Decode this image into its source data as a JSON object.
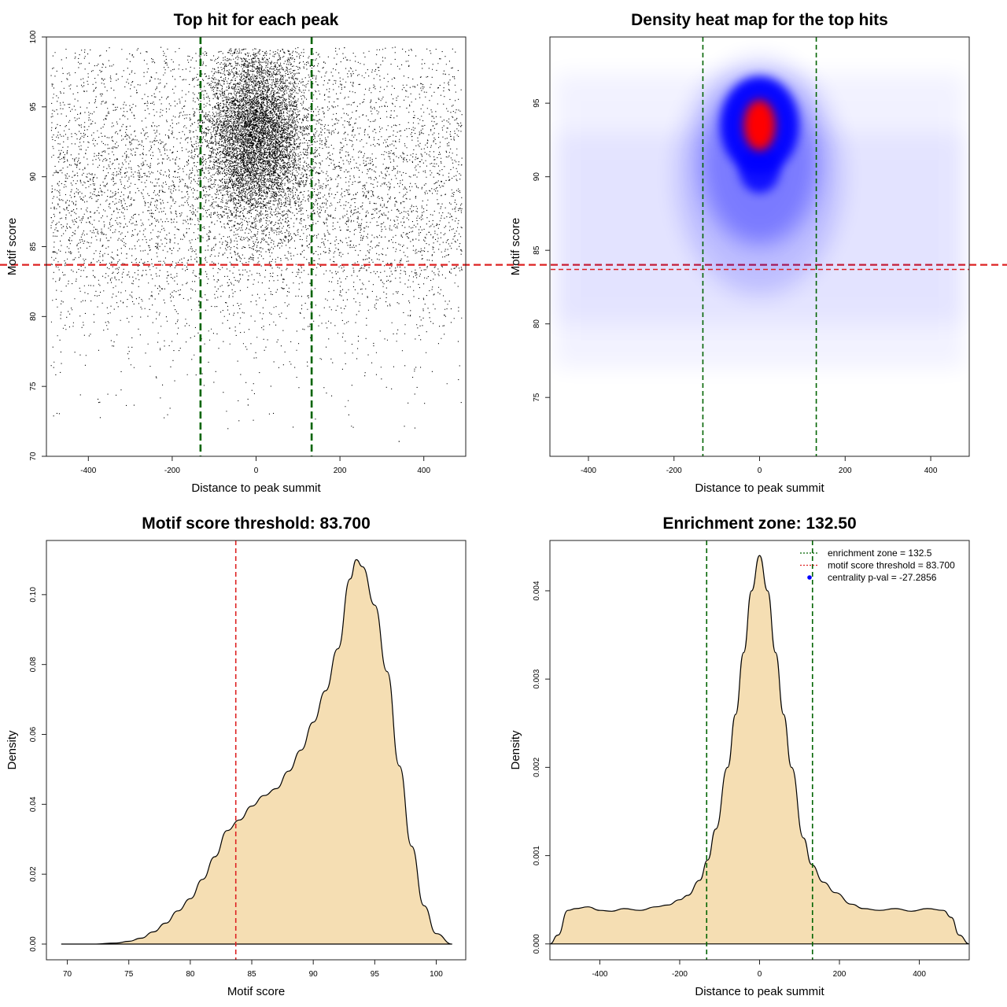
{
  "chart_data": [
    {
      "id": "p1",
      "type": "scatter",
      "title": "Top hit for each peak",
      "xlabel": "Distance to peak summit",
      "ylabel": "Motif score",
      "xlim": [
        -500,
        500
      ],
      "ylim": [
        70,
        100
      ],
      "xticks": [
        -400,
        -200,
        0,
        200,
        400
      ],
      "yticks": [
        70,
        75,
        80,
        85,
        90,
        95,
        100
      ],
      "hlines": [
        {
          "value": 83.7,
          "color": "#dd2222",
          "style": "dashed"
        }
      ],
      "vlines": [
        {
          "value": -132.5,
          "color": "#006400",
          "style": "dashed"
        },
        {
          "value": 132.5,
          "color": "#006400",
          "style": "dashed"
        }
      ],
      "distribution": {
        "background": {
          "n": 6200,
          "x_range": [
            -490,
            490
          ],
          "score_mean": 89,
          "score_sd": 5.5
        },
        "central_cluster": {
          "n": 6800,
          "x_mean": 0,
          "x_sd": 60,
          "score_mean": 93,
          "score_sd": 3
        }
      },
      "notable_points": [
        {
          "x": 340,
          "y": 71.1
        },
        {
          "x": -20,
          "y": 73.7
        },
        {
          "x": 220,
          "y": 73
        }
      ]
    },
    {
      "id": "p2",
      "type": "heatmap",
      "title": "Density heat map for the top hits",
      "xlabel": "Distance to peak summit",
      "ylabel": "Motif score",
      "xlim": [
        -490,
        490
      ],
      "ylim": [
        71,
        99.5
      ],
      "xticks": [
        -400,
        -200,
        0,
        200,
        400
      ],
      "yticks": [
        75,
        80,
        85,
        90,
        95
      ],
      "density_peak": {
        "x": 0,
        "y": 93.5
      },
      "color_scale": [
        "#ffffff",
        "#0000ff",
        "#ff0000"
      ],
      "hlines": [
        {
          "value": 83.7,
          "color": "#dd2222",
          "style": "dashed"
        }
      ],
      "vlines": [
        {
          "value": -132.5,
          "color": "#006400",
          "style": "dashed"
        },
        {
          "value": 132.5,
          "color": "#006400",
          "style": "dashed"
        }
      ]
    },
    {
      "id": "p3",
      "type": "area",
      "title": "Motif score threshold: 83.700",
      "xlabel": "Motif score",
      "ylabel": "Density",
      "xlim": [
        68.3,
        102.4
      ],
      "ylim": [
        -0.0045,
        0.1155
      ],
      "xticks": [
        70,
        75,
        80,
        85,
        90,
        95,
        100
      ],
      "yticks": [
        "0.00",
        "0.02",
        "0.04",
        "0.06",
        "0.08",
        "0.10"
      ],
      "fill": "#f5deb3",
      "x": [
        69.5,
        72,
        74,
        75,
        76,
        77,
        78,
        79,
        80,
        81,
        82,
        83,
        84,
        85,
        86,
        87,
        88,
        89,
        90,
        91,
        92,
        93,
        93.5,
        94,
        95,
        96,
        97,
        98,
        99,
        100,
        101.3
      ],
      "y": [
        0,
        0,
        0.0003,
        0.0008,
        0.0017,
        0.0035,
        0.006,
        0.0095,
        0.013,
        0.0185,
        0.025,
        0.0325,
        0.0355,
        0.0395,
        0.0425,
        0.0445,
        0.0495,
        0.0555,
        0.0635,
        0.0725,
        0.0845,
        0.1045,
        0.11,
        0.108,
        0.097,
        0.078,
        0.051,
        0.028,
        0.011,
        0.003,
        0
      ],
      "vlines": [
        {
          "value": 83.7,
          "color": "#dd2222",
          "style": "dashed"
        }
      ]
    },
    {
      "id": "p4",
      "type": "area",
      "title": "Enrichment zone: 132.50",
      "xlabel": "Distance to peak summit",
      "ylabel": "Density",
      "xlim": [
        -525,
        525
      ],
      "ylim": [
        -0.00018,
        0.00457
      ],
      "xticks": [
        -400,
        -200,
        0,
        200,
        400
      ],
      "yticks": [
        "0.000",
        "0.001",
        "0.002",
        "0.003",
        "0.004"
      ],
      "fill": "#f5deb3",
      "x": [
        -525,
        -505,
        -480,
        -460,
        -430,
        -400,
        -370,
        -340,
        -300,
        -260,
        -230,
        -200,
        -180,
        -150,
        -130,
        -110,
        -80,
        -60,
        -40,
        -20,
        0,
        20,
        40,
        60,
        80,
        110,
        130,
        160,
        190,
        230,
        260,
        300,
        340,
        380,
        420,
        460,
        480,
        500,
        525
      ],
      "y": [
        0,
        0.0001,
        0.00038,
        0.0004,
        0.00042,
        0.00038,
        0.00037,
        0.0004,
        0.00038,
        0.00042,
        0.00044,
        0.0005,
        0.00055,
        0.00072,
        0.00095,
        0.0013,
        0.002,
        0.0026,
        0.0033,
        0.004,
        0.0044,
        0.004,
        0.0033,
        0.0026,
        0.002,
        0.0012,
        0.0009,
        0.0007,
        0.00058,
        0.00045,
        0.0004,
        0.00038,
        0.0004,
        0.00037,
        0.0004,
        0.00038,
        0.0003,
        0.0001,
        0
      ],
      "vlines": [
        {
          "value": -132.5,
          "color": "#006400",
          "style": "dashed"
        },
        {
          "value": 132.5,
          "color": "#006400",
          "style": "dashed"
        }
      ],
      "legend": {
        "placement": "top-right",
        "entries": [
          {
            "label": "enrichment zone = 132.5",
            "color": "#006400",
            "kind": "dotted-line"
          },
          {
            "label": "motif score threshold = 83.700",
            "color": "#dd2222",
            "kind": "dotted-line"
          },
          {
            "label": "centrality p-val = -27.2856",
            "color": "#0000ff",
            "kind": "point"
          }
        ]
      }
    }
  ]
}
